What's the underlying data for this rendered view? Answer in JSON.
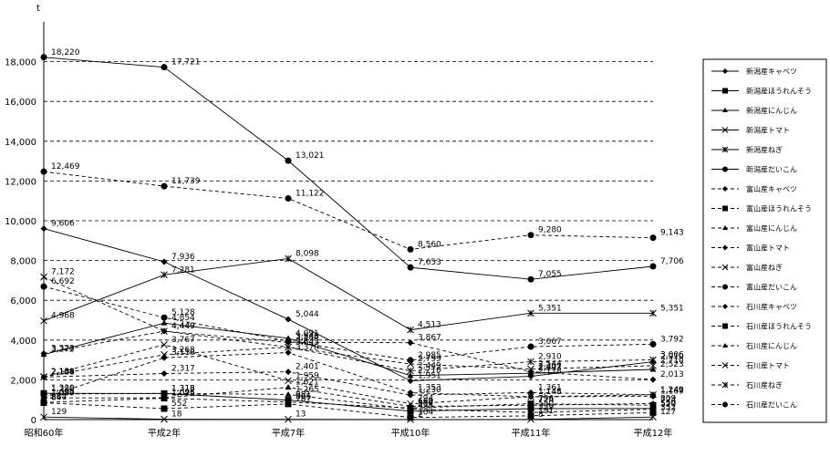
{
  "chart_data": {
    "type": "line",
    "unit_label": "t",
    "categories": [
      "昭和60年",
      "平成2年",
      "平成7年",
      "平成10年",
      "平成11年",
      "平成12年"
    ],
    "ylim": [
      0,
      18000
    ],
    "yticks": [
      "0",
      "2,000",
      "4,000",
      "6,000",
      "8,000",
      "10,000",
      "12,000",
      "14,000",
      "16,000",
      "18,000"
    ],
    "grid": true,
    "legend_position": "right",
    "series": [
      {
        "name": "新潟産キャベツ",
        "values": [
          9606,
          7936,
          5044,
          1951,
          2178,
          2910
        ],
        "labels": [
          "9,606",
          "7,936",
          "5,044",
          "1,951",
          "2,178",
          "2,910"
        ],
        "dash": "solid",
        "marker": "diamond"
      },
      {
        "name": "新潟産ほうれんそう",
        "values": [
          1320,
          1313,
          981,
          425,
          550,
          559
        ],
        "labels": [
          "1,320",
          "1,313",
          "981",
          "425",
          "550",
          "559"
        ],
        "dash": "solid",
        "marker": "square"
      },
      {
        "name": "新潟産にんじん",
        "values": [
          3272,
          4854,
          4091,
          2216,
          2333,
          2523
        ],
        "labels": [
          "3,272",
          "4,854",
          "4,091",
          "2,216",
          "2,333",
          "2,523"
        ],
        "dash": "solid",
        "marker": "triangle"
      },
      {
        "name": "新潟産トマト",
        "values": [
          129,
          18,
          13,
          2,
          8,
          127
        ],
        "labels": [
          "129",
          "18",
          "13",
          "2",
          "8",
          "127"
        ],
        "dash": "solid",
        "marker": "x"
      },
      {
        "name": "新潟産ねぎ",
        "values": [
          4968,
          7281,
          8098,
          4513,
          5351,
          5351
        ],
        "labels": [
          "4,968",
          "7,281",
          "8,098",
          "4,513",
          "5,351",
          "5,351"
        ],
        "dash": "solid",
        "marker": "star"
      },
      {
        "name": "新潟産だいこん",
        "values": [
          18220,
          17721,
          13021,
          7653,
          7055,
          7706
        ],
        "labels": [
          "18,220",
          "17,721",
          "13,021",
          "7,653",
          "7,055",
          "7,706"
        ],
        "dash": "solid",
        "marker": "circle"
      },
      {
        "name": "富山産キャベツ",
        "values": [
          2138,
          2317,
          2401,
          1230,
          1361,
          1249
        ],
        "labels": [
          "2,138",
          "2,317",
          "2,401",
          "1,230",
          "1,361",
          "1,249"
        ],
        "dash": "dashed",
        "marker": "diamond"
      },
      {
        "name": "富山産ほうれんそう",
        "values": [
          864,
          1075,
          885,
          584,
          796,
          724
        ],
        "labels": [
          "864",
          "1,075",
          "885",
          "584",
          "796",
          "724"
        ],
        "dash": "dashed",
        "marker": "square"
      },
      {
        "name": "富山産にんじん",
        "values": [
          1089,
          1096,
          1621,
          660,
          724,
          809
        ],
        "labels": [
          "1,089",
          "1,096",
          "1,621",
          "660",
          "724",
          "809"
        ],
        "dash": "dashed",
        "marker": "triangle"
      },
      {
        "name": "富山産トマト",
        "values": [
          1095,
          3110,
          3370,
          1353,
          1148,
          1169
        ],
        "labels": [
          "1,095",
          "3,110",
          "3,370",
          "1,353",
          "1,148",
          "1,169"
        ],
        "dash": "dashed",
        "marker": "diamond"
      },
      {
        "name": "富山産ねぎ",
        "values": [
          2144,
          3268,
          3643,
          2799,
          2544,
          2710
        ],
        "labels": [
          "2,144",
          "3,268",
          "3,643",
          "2,799",
          "2,544",
          "2,710"
        ],
        "dash": "dashed",
        "marker": "x"
      },
      {
        "name": "富山産だいこん",
        "values": [
          6692,
          5128,
          3946,
          2985,
          3667,
          3792
        ],
        "labels": [
          "6,692",
          "5,128",
          "3,946",
          "2,985",
          "3,667",
          "3,792"
        ],
        "dash": "dashed",
        "marker": "circle"
      },
      {
        "name": "石川産キャベツ",
        "values": [
          3323,
          4449,
          3884,
          3867,
          2407,
          2013
        ],
        "labels": [
          "3,323",
          "4,449",
          "3,884",
          "3,867",
          "2,407",
          "2,013"
        ],
        "dash": "dashed",
        "marker": "diamond"
      },
      {
        "name": "石川産ほうれんそう",
        "values": [
          847,
          552,
          787,
          104,
          191,
          352
        ],
        "labels": [
          "847",
          "552",
          "787",
          "104",
          "191",
          "352"
        ],
        "dash": "dashed",
        "marker": "square"
      },
      {
        "name": "石川産にんじん",
        "values": [
          1285,
          1316,
          1265,
          532,
          359,
          520
        ],
        "labels": [
          "1,285",
          "1,316",
          "1,265",
          "532",
          "359",
          "520"
        ],
        "dash": "dashed",
        "marker": "triangle"
      },
      {
        "name": "石川産トマト",
        "values": [
          2159,
          3767,
          1959,
          794,
          1148,
          1249
        ],
        "labels": [
          "2,159",
          "3,767",
          "1,959",
          "794",
          "1,148",
          "1,249"
        ],
        "dash": "dashed",
        "marker": "x"
      },
      {
        "name": "石川産ねぎ",
        "values": [
          7172,
          4449,
          3643,
          2449,
          2910,
          3006
        ],
        "labels": [
          "7,172",
          "4,449",
          "3,643",
          "2,449",
          "2,910",
          "3,006"
        ],
        "dash": "dashed",
        "marker": "star"
      },
      {
        "name": "石川産だいこん",
        "values": [
          12469,
          11739,
          11122,
          8560,
          9280,
          9143
        ],
        "labels": [
          "12,469",
          "11,739",
          "11,122",
          "8,560",
          "9,280",
          "9,143"
        ],
        "dash": "dashed",
        "marker": "circle"
      }
    ]
  }
}
